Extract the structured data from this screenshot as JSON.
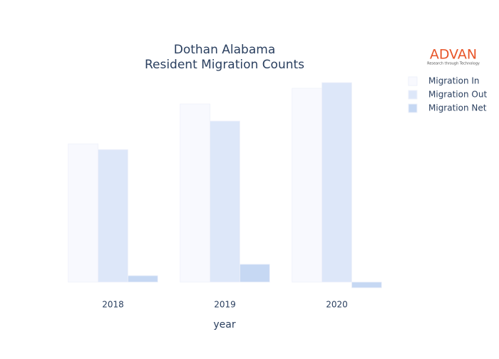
{
  "chart_data": {
    "type": "bar",
    "title": "Dothan Alabama",
    "subtitle": "Resident Migration Counts",
    "logo": {
      "name": "ADVAN",
      "tagline": "Research through Technology"
    },
    "x_label": "year",
    "categories": [
      "2018",
      "2019",
      "2020"
    ],
    "series": [
      {
        "name": "Migration In",
        "color": "#f8f9fe",
        "values": [
          194,
          250,
          272
        ]
      },
      {
        "name": "Migration Out",
        "color": "#dde7f9",
        "values": [
          186,
          226,
          280
        ]
      },
      {
        "name": "Migration Net",
        "color": "#c6d8f3",
        "values": [
          9,
          25,
          -8
        ]
      }
    ],
    "ylim": [
      -15,
      295
    ],
    "legend": "top-right"
  }
}
